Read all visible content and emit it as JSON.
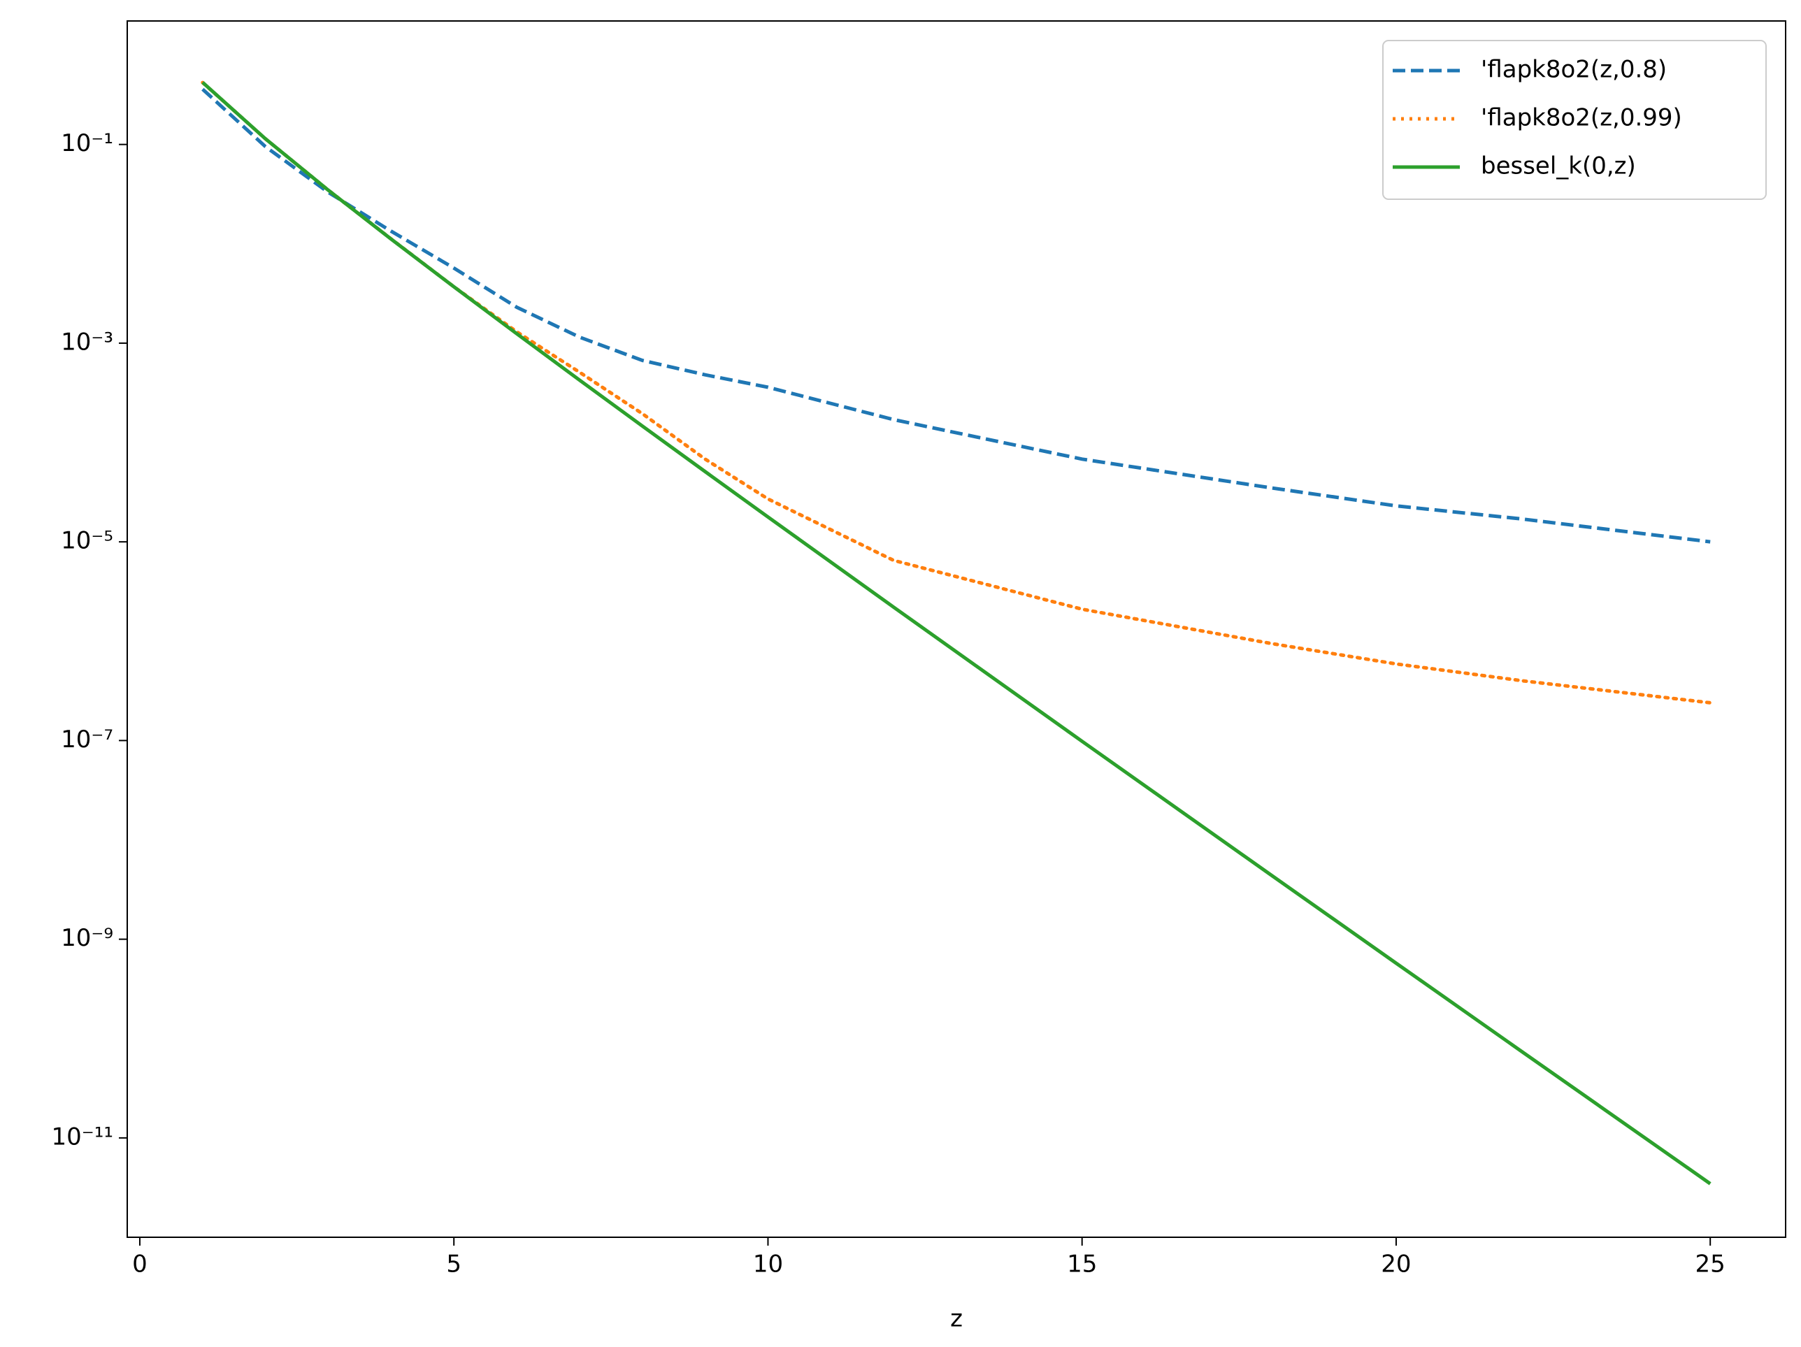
{
  "chart_data": {
    "type": "line",
    "x": [
      1,
      2,
      3,
      4,
      5,
      6,
      7,
      8,
      9,
      10,
      12,
      15,
      18,
      20,
      22,
      25
    ],
    "series": [
      {
        "name": "'flapk8o2(z,0.8)",
        "color": "#1f77b4",
        "linestyle": "dashed",
        "values": [
          0.36,
          0.095,
          0.033,
          0.0134,
          0.0057,
          0.0023,
          0.00115,
          0.00067,
          0.00048,
          0.00036,
          0.00017,
          6.8e-05,
          3.5e-05,
          2.3e-05,
          1.7e-05,
          1e-05
        ]
      },
      {
        "name": "'flapk8o2(z,0.99)",
        "color": "#ff7f0e",
        "linestyle": "dotted",
        "values": [
          0.42,
          0.114,
          0.0347,
          0.0112,
          0.0037,
          0.0013,
          0.00051,
          0.000195,
          6.8e-05,
          2.7e-05,
          6.5e-06,
          2.1e-06,
          9.5e-07,
          5.9e-07,
          4e-07,
          2.4e-07
        ]
      },
      {
        "name": "bessel_k(0,z)",
        "color": "#2ca02c",
        "linestyle": "solid",
        "values": [
          0.421,
          0.1139,
          0.0347,
          0.01116,
          0.00369,
          0.001244,
          0.0004248,
          0.0001465,
          5.088e-05,
          1.778e-05,
          2.2e-06,
          9.82e-08,
          4.47e-09,
          5.74e-10,
          7.41e-11,
          3.46e-12
        ]
      }
    ],
    "xlabel": "z",
    "xlim": [
      -0.2,
      26.2
    ],
    "xticks": [
      0,
      5,
      10,
      15,
      20,
      25
    ],
    "ylim": [
      1e-12,
      1.75
    ],
    "yscale": "log",
    "yticks": [
      {
        "value": 0.1,
        "label": "10⁻¹"
      },
      {
        "value": 0.001,
        "label": "10⁻³"
      },
      {
        "value": 1e-05,
        "label": "10⁻⁵"
      },
      {
        "value": 1e-07,
        "label": "10⁻⁷"
      },
      {
        "value": 1e-09,
        "label": "10⁻⁹"
      },
      {
        "value": 1e-11,
        "label": "10⁻¹¹"
      }
    ],
    "legend": "upper right"
  }
}
